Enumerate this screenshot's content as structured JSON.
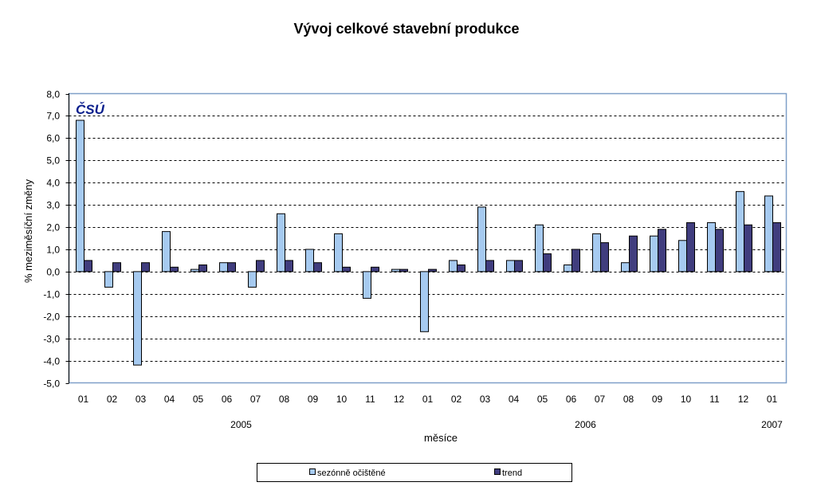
{
  "chart_data": {
    "type": "bar",
    "title": "Vývoj celkové stavební produkce",
    "xlabel": "měsíce",
    "ylabel": "% meziměsíční změny",
    "ylim": [
      -5,
      8
    ],
    "yticks": [
      "-5,0",
      "-4,0",
      "-3,0",
      "-2,0",
      "-1,0",
      "0,0",
      "1,0",
      "2,0",
      "3,0",
      "4,0",
      "5,0",
      "6,0",
      "7,0",
      "8,0"
    ],
    "grid": true,
    "legend_position": "bottom",
    "logo": "ČSÚ",
    "categories": [
      "01",
      "02",
      "03",
      "04",
      "05",
      "06",
      "07",
      "08",
      "09",
      "10",
      "11",
      "12",
      "01",
      "02",
      "03",
      "04",
      "05",
      "06",
      "07",
      "08",
      "09",
      "10",
      "11",
      "12",
      "01"
    ],
    "years": [
      {
        "label": "2005",
        "from": 0,
        "to": 11
      },
      {
        "label": "2006",
        "from": 12,
        "to": 23
      },
      {
        "label": "2007",
        "from": 24,
        "to": 24
      }
    ],
    "series": [
      {
        "name": "sezónně očištěné",
        "color": "#a6caf0",
        "values": [
          6.8,
          -0.7,
          -4.2,
          1.8,
          0.1,
          0.4,
          -0.7,
          2.6,
          1.0,
          1.7,
          -1.2,
          0.1,
          -2.7,
          0.5,
          2.9,
          0.5,
          2.1,
          0.3,
          1.7,
          0.4,
          1.6,
          1.4,
          2.2,
          3.6,
          3.4
        ]
      },
      {
        "name": "trend",
        "color": "#403d7e",
        "values": [
          0.5,
          0.4,
          0.4,
          0.2,
          0.3,
          0.4,
          0.5,
          0.5,
          0.4,
          0.2,
          0.2,
          0.1,
          0.1,
          0.3,
          0.5,
          0.5,
          0.8,
          1.0,
          1.3,
          1.6,
          1.9,
          2.2,
          1.9,
          2.1,
          2.2
        ]
      }
    ]
  }
}
